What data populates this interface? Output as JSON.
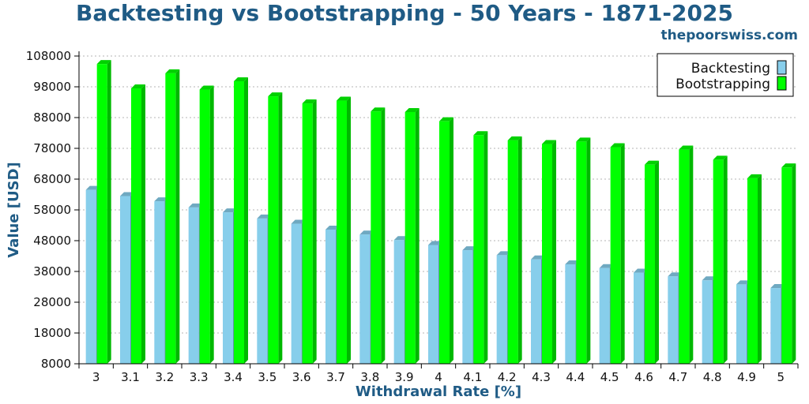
{
  "header": {
    "title": "Backtesting vs Bootstrapping - 50 Years - 1871-2025",
    "source": "thepoorswiss.com"
  },
  "chart_data": {
    "type": "bar",
    "title": "Backtesting vs Bootstrapping - 50 Years - 1871-2025",
    "xlabel": "Withdrawal Rate [%]",
    "ylabel": "Value [USD]",
    "ylim": [
      8000,
      108000
    ],
    "yticks": [
      8000,
      18000,
      28000,
      38000,
      48000,
      58000,
      68000,
      78000,
      88000,
      98000,
      108000
    ],
    "grid": "horizontal dotted",
    "legend_position": "top-right",
    "categories": [
      "3",
      "3.1",
      "3.2",
      "3.3",
      "3.4",
      "3.5",
      "3.6",
      "3.7",
      "3.8",
      "3.9",
      "4",
      "4.1",
      "4.2",
      "4.3",
      "4.4",
      "4.5",
      "4.6",
      "4.7",
      "4.8",
      "4.9",
      "5"
    ],
    "series": [
      {
        "name": "Backtesting",
        "color": "#87ceeb",
        "values": [
          64500,
          62500,
          60800,
          58800,
          57200,
          55200,
          53500,
          51600,
          50000,
          48200,
          46600,
          44900,
          43300,
          41900,
          40300,
          39100,
          37600,
          36400,
          35100,
          33800,
          32600
        ]
      },
      {
        "name": "Bootstrapping",
        "color": "#00ff00",
        "values": [
          105400,
          97500,
          102400,
          97100,
          99800,
          94900,
          92600,
          93500,
          90000,
          89800,
          86800,
          82300,
          80600,
          79400,
          80200,
          78400,
          72700,
          77600,
          74300,
          68300,
          71800
        ]
      }
    ]
  }
}
